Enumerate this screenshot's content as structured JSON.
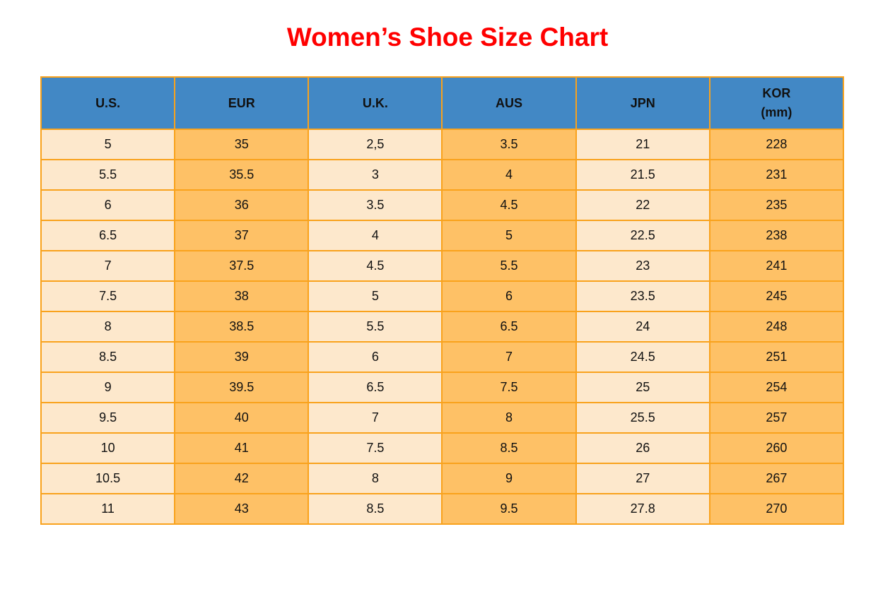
{
  "page": {
    "title": "Women’s Shoe Size Chart"
  },
  "colors": {
    "title_red": "#FF0000",
    "header_blue": "#4288C5",
    "cell_cream": "#FDE8CC",
    "cell_orange": "#FEC166",
    "border_orange": "#F9A21C",
    "text_black": "#111111",
    "page_bg": "#FFFFFF"
  },
  "chart_data": {
    "type": "table",
    "title": "Women’s Shoe Size Chart",
    "columns": [
      "U.S.",
      "EUR",
      "U.K.",
      "AUS",
      "JPN",
      "KOR (mm)"
    ],
    "header_display": [
      {
        "key": "us",
        "line1": "U.S."
      },
      {
        "key": "eur",
        "line1": "EUR"
      },
      {
        "key": "uk",
        "line1": "U.K."
      },
      {
        "key": "aus",
        "line1": "AUS"
      },
      {
        "key": "jpn",
        "line1": "JPN"
      },
      {
        "key": "kor",
        "line1": "KOR",
        "line2": "(mm)"
      }
    ],
    "rows": [
      [
        "5",
        "35",
        "2,5",
        "3.5",
        "21",
        "228"
      ],
      [
        "5.5",
        "35.5",
        "3",
        "4",
        "21.5",
        "231"
      ],
      [
        "6",
        "36",
        "3.5",
        "4.5",
        "22",
        "235"
      ],
      [
        "6.5",
        "37",
        "4",
        "5",
        "22.5",
        "238"
      ],
      [
        "7",
        "37.5",
        "4.5",
        "5.5",
        "23",
        "241"
      ],
      [
        "7.5",
        "38",
        "5",
        "6",
        "23.5",
        "245"
      ],
      [
        "8",
        "38.5",
        "5.5",
        "6.5",
        "24",
        "248"
      ],
      [
        "8.5",
        "39",
        "6",
        "7",
        "24.5",
        "251"
      ],
      [
        "9",
        "39.5",
        "6.5",
        "7.5",
        "25",
        "254"
      ],
      [
        "9.5",
        "40",
        "7",
        "8",
        "25.5",
        "257"
      ],
      [
        "10",
        "41",
        "7.5",
        "8.5",
        "26",
        "260"
      ],
      [
        "10.5",
        "42",
        "8",
        "9",
        "27",
        "267"
      ],
      [
        "11",
        "43",
        "8.5",
        "9.5",
        "27.8",
        "270"
      ]
    ]
  }
}
